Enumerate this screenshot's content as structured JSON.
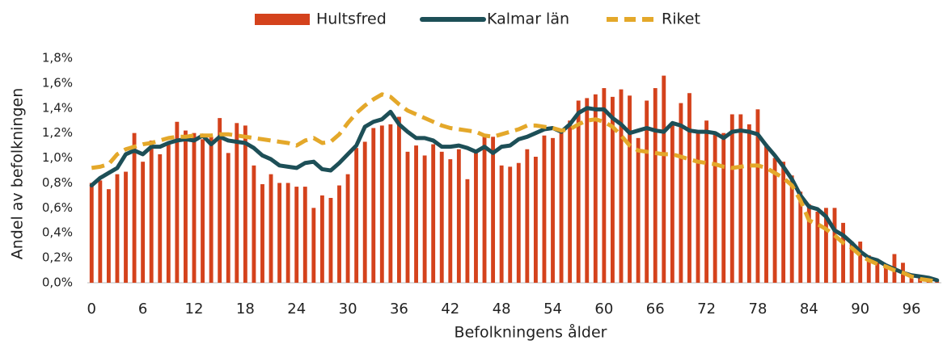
{
  "chart_data": {
    "type": "bar",
    "xlabel": "Befolkningens ålder",
    "ylabel": "Andel av befolkningen",
    "categories": [
      "0",
      null,
      null,
      null,
      null,
      null,
      "6",
      null,
      null,
      null,
      null,
      null,
      "12",
      null,
      null,
      null,
      null,
      null,
      "18",
      null,
      null,
      null,
      null,
      null,
      "24",
      null,
      null,
      null,
      null,
      null,
      "30",
      null,
      null,
      null,
      null,
      null,
      "36",
      null,
      null,
      null,
      null,
      null,
      "42",
      null,
      null,
      null,
      null,
      null,
      "48",
      null,
      null,
      null,
      null,
      null,
      "54",
      null,
      null,
      null,
      null,
      null,
      "60",
      null,
      null,
      null,
      null,
      null,
      "66",
      null,
      null,
      null,
      null,
      null,
      "72",
      null,
      null,
      null,
      null,
      null,
      "78",
      null,
      null,
      null,
      null,
      null,
      "84",
      null,
      null,
      null,
      null,
      null,
      "90",
      null,
      null,
      null,
      null,
      null,
      "96",
      null,
      null,
      null
    ],
    "ylim": [
      0,
      1.8
    ],
    "yticks": [
      {
        "value": 0,
        "label": "0,0%"
      },
      {
        "value": 0.2,
        "label": "0,2%"
      },
      {
        "value": 0.4,
        "label": "0,4%"
      },
      {
        "value": 0.6,
        "label": "0,6%"
      },
      {
        "value": 0.8,
        "label": "0,8%"
      },
      {
        "value": 1.0,
        "label": "1,0%"
      },
      {
        "value": 1.2,
        "label": "1,2%"
      },
      {
        "value": 1.4,
        "label": "1,4%"
      },
      {
        "value": 1.6,
        "label": "1,6%"
      },
      {
        "value": 1.8,
        "label": "1,8%"
      }
    ],
    "grid": false,
    "legend": "top",
    "series": [
      {
        "name": "Hultsfred",
        "type": "bar",
        "color": "#d4421c",
        "values": [
          0.8,
          0.82,
          0.75,
          0.87,
          0.89,
          1.2,
          0.97,
          1.14,
          1.03,
          1.12,
          1.29,
          1.22,
          1.2,
          1.15,
          1.17,
          1.32,
          1.04,
          1.28,
          1.26,
          0.94,
          0.79,
          0.87,
          0.8,
          0.8,
          0.77,
          0.77,
          0.6,
          0.7,
          0.68,
          0.78,
          0.87,
          1.08,
          1.13,
          1.24,
          1.26,
          1.27,
          1.33,
          1.05,
          1.1,
          1.02,
          1.11,
          1.05,
          0.99,
          1.07,
          0.83,
          1.04,
          1.18,
          1.17,
          0.94,
          0.93,
          0.96,
          1.07,
          1.01,
          1.18,
          1.16,
          1.21,
          1.3,
          1.46,
          1.48,
          1.51,
          1.56,
          1.49,
          1.55,
          1.5,
          1.16,
          1.46,
          1.56,
          1.66,
          1.27,
          1.44,
          1.52,
          1.21,
          1.3,
          1.21,
          1.2,
          1.35,
          1.35,
          1.27,
          1.39,
          1.11,
          1.0,
          0.97,
          0.86,
          0.73,
          0.63,
          0.57,
          0.6,
          0.6,
          0.48,
          0.33,
          0.33,
          0.22,
          0.18,
          0.15,
          0.23,
          0.16,
          0.07,
          0.04,
          0.02,
          0.01
        ]
      },
      {
        "name": "Kalmar län",
        "type": "line",
        "color": "#1d4f57",
        "values": [
          0.78,
          0.84,
          0.88,
          0.92,
          1.03,
          1.06,
          1.03,
          1.09,
          1.09,
          1.12,
          1.14,
          1.15,
          1.14,
          1.18,
          1.11,
          1.17,
          1.14,
          1.13,
          1.12,
          1.08,
          1.02,
          0.99,
          0.94,
          0.93,
          0.92,
          0.96,
          0.97,
          0.91,
          0.9,
          0.96,
          1.03,
          1.1,
          1.25,
          1.29,
          1.31,
          1.37,
          1.27,
          1.21,
          1.16,
          1.16,
          1.14,
          1.09,
          1.09,
          1.1,
          1.08,
          1.05,
          1.09,
          1.04,
          1.09,
          1.1,
          1.15,
          1.17,
          1.2,
          1.23,
          1.24,
          1.21,
          1.27,
          1.36,
          1.4,
          1.39,
          1.39,
          1.32,
          1.27,
          1.2,
          1.22,
          1.24,
          1.22,
          1.21,
          1.28,
          1.26,
          1.22,
          1.21,
          1.21,
          1.2,
          1.16,
          1.21,
          1.22,
          1.21,
          1.19,
          1.1,
          1.02,
          0.93,
          0.83,
          0.7,
          0.61,
          0.59,
          0.53,
          0.42,
          0.38,
          0.32,
          0.25,
          0.2,
          0.18,
          0.14,
          0.11,
          0.08,
          0.06,
          0.05,
          0.04,
          0.02
        ]
      },
      {
        "name": "Riket",
        "type": "line",
        "dashed": true,
        "color": "#e4a82a",
        "values": [
          0.92,
          0.93,
          0.95,
          1.03,
          1.07,
          1.09,
          1.11,
          1.12,
          1.14,
          1.16,
          1.17,
          1.17,
          1.18,
          1.18,
          1.18,
          1.19,
          1.19,
          1.18,
          1.17,
          1.16,
          1.15,
          1.14,
          1.13,
          1.12,
          1.1,
          1.14,
          1.16,
          1.12,
          1.13,
          1.19,
          1.28,
          1.36,
          1.42,
          1.47,
          1.51,
          1.49,
          1.43,
          1.38,
          1.35,
          1.32,
          1.29,
          1.26,
          1.24,
          1.23,
          1.22,
          1.21,
          1.18,
          1.17,
          1.19,
          1.21,
          1.23,
          1.26,
          1.26,
          1.25,
          1.24,
          1.22,
          1.23,
          1.27,
          1.3,
          1.31,
          1.29,
          1.25,
          1.18,
          1.1,
          1.06,
          1.05,
          1.04,
          1.03,
          1.03,
          1.01,
          0.99,
          0.97,
          0.96,
          0.95,
          0.93,
          0.92,
          0.93,
          0.94,
          0.94,
          0.92,
          0.88,
          0.84,
          0.78,
          0.66,
          0.5,
          0.47,
          0.43,
          0.38,
          0.32,
          0.28,
          0.22,
          0.18,
          0.15,
          0.13,
          0.1,
          0.08,
          0.05,
          0.03,
          0.02,
          0.01
        ]
      }
    ]
  }
}
